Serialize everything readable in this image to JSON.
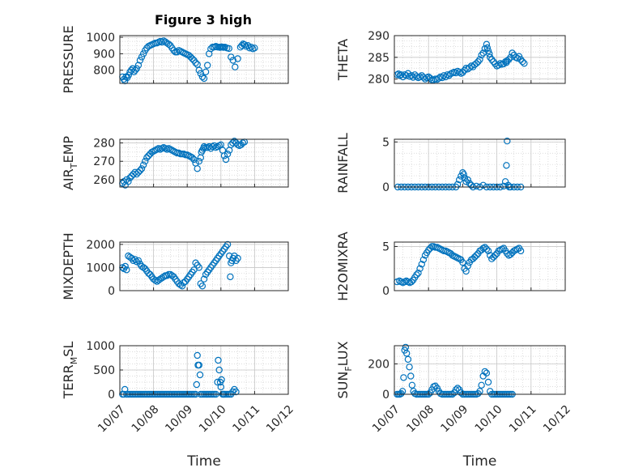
{
  "figure": {
    "title": "Figure 3 high",
    "colors": {
      "marker": "#0072BD",
      "axis": "#262626",
      "grid": "#d0d0d0"
    }
  },
  "chart_data": [
    {
      "type": "scatter",
      "ylabel": "PRESSURE",
      "yticks": [
        800,
        900,
        1000
      ],
      "ylim": [
        720,
        1010
      ],
      "xlim": [
        "10/07",
        "10/12"
      ],
      "xticks": [
        "10/07",
        "10/08",
        "10/09",
        "10/10",
        "10/11",
        "10/12"
      ],
      "show_x_ticklabels": false,
      "x": [
        7.08,
        7.12,
        7.15,
        7.18,
        7.22,
        7.26,
        7.3,
        7.34,
        7.38,
        7.42,
        7.46,
        7.5,
        7.55,
        7.6,
        7.65,
        7.7,
        7.75,
        7.8,
        7.85,
        7.9,
        7.95,
        8.0,
        8.05,
        8.1,
        8.15,
        8.2,
        8.25,
        8.3,
        8.35,
        8.4,
        8.45,
        8.5,
        8.55,
        8.6,
        8.65,
        8.7,
        8.75,
        8.8,
        8.85,
        8.9,
        8.95,
        9.0,
        9.05,
        9.1,
        9.15,
        9.2,
        9.25,
        9.3,
        9.35,
        9.4,
        9.45,
        9.5,
        9.55,
        9.6,
        9.65,
        9.7,
        9.75,
        9.8,
        9.85,
        9.9,
        9.95,
        9.97,
        10.0,
        10.02,
        10.05,
        10.08,
        10.12,
        10.18,
        10.24,
        10.3,
        10.36,
        10.42,
        10.5,
        10.58,
        10.62,
        10.66,
        10.7,
        10.75,
        10.8,
        10.85,
        10.9,
        10.95,
        11.0
      ],
      "y": [
        760,
        745,
        735,
        760,
        755,
        770,
        790,
        800,
        810,
        790,
        800,
        810,
        830,
        860,
        880,
        900,
        920,
        935,
        945,
        950,
        955,
        960,
        965,
        965,
        970,
        975,
        970,
        978,
        972,
        965,
        958,
        950,
        935,
        920,
        910,
        910,
        920,
        915,
        910,
        905,
        900,
        895,
        890,
        880,
        870,
        860,
        845,
        835,
        800,
        780,
        760,
        750,
        790,
        830,
        900,
        930,
        940,
        940,
        945,
        940,
        940,
        938,
        940,
        942,
        940,
        938,
        940,
        935,
        932,
        880,
        860,
        820,
        870,
        940,
        950,
        960,
        955,
        945,
        950,
        935,
        940,
        930,
        935
      ],
      "ylim_note": ""
    },
    {
      "type": "scatter",
      "ylabel": "THETA",
      "yticks": [
        280,
        285,
        290
      ],
      "ylim": [
        279,
        290
      ],
      "xlim": [
        "10/07",
        "10/12"
      ],
      "xticks": [
        "10/07",
        "10/08",
        "10/09",
        "10/10",
        "10/11",
        "10/12"
      ],
      "show_x_ticklabels": false,
      "x": [
        7.08,
        7.12,
        7.16,
        7.2,
        7.25,
        7.3,
        7.35,
        7.4,
        7.45,
        7.5,
        7.55,
        7.6,
        7.65,
        7.7,
        7.75,
        7.8,
        7.85,
        7.9,
        7.95,
        8.0,
        8.05,
        8.1,
        8.15,
        8.2,
        8.25,
        8.3,
        8.35,
        8.4,
        8.45,
        8.5,
        8.55,
        8.6,
        8.65,
        8.7,
        8.75,
        8.8,
        8.85,
        8.9,
        8.95,
        9.0,
        9.05,
        9.1,
        9.15,
        9.2,
        9.25,
        9.3,
        9.35,
        9.4,
        9.45,
        9.5,
        9.55,
        9.6,
        9.65,
        9.7,
        9.72,
        9.75,
        9.78,
        9.8,
        9.85,
        9.9,
        9.95,
        10.0,
        10.05,
        10.1,
        10.15,
        10.2,
        10.25,
        10.28,
        10.3,
        10.35,
        10.4,
        10.45,
        10.5,
        10.55,
        10.6,
        10.65,
        10.7,
        10.75,
        10.8
      ],
      "y": [
        281,
        281.2,
        280.8,
        281,
        280.5,
        281,
        280.8,
        281.3,
        280.6,
        280.8,
        280.4,
        281,
        280.6,
        280.3,
        280.5,
        280.8,
        280.4,
        280,
        280.3,
        280.5,
        280.2,
        279.8,
        279.8,
        280,
        279.9,
        280.2,
        280.5,
        280.3,
        280.8,
        280.5,
        281,
        280.8,
        281.2,
        281.4,
        281.6,
        281.4,
        281.8,
        281.6,
        281.3,
        281.5,
        282,
        282.5,
        282.3,
        282.6,
        283,
        282.8,
        283.3,
        283.6,
        284,
        284.5,
        285.5,
        286,
        287,
        288,
        287.2,
        286.5,
        285.8,
        285,
        284.5,
        284,
        283.5,
        283,
        283.2,
        283.6,
        283.4,
        283.5,
        284,
        283.8,
        284.2,
        284.5,
        285,
        286,
        285.5,
        285,
        284.8,
        285.2,
        284.5,
        284,
        283.6
      ],
      "ylim_note": ""
    },
    {
      "type": "scatter",
      "ylabel": "AIR_TEMP",
      "ylabel_main": "AIR",
      "ylabel_sub": "T",
      "ylabel_tail": "EMP",
      "yticks": [
        260,
        270,
        280
      ],
      "ylim": [
        256,
        282
      ],
      "xlim": [
        "10/07",
        "10/12"
      ],
      "xticks": [
        "10/07",
        "10/08",
        "10/09",
        "10/10",
        "10/11",
        "10/12"
      ],
      "show_x_ticklabels": false,
      "x": [
        7.08,
        7.12,
        7.16,
        7.2,
        7.25,
        7.3,
        7.35,
        7.4,
        7.45,
        7.5,
        7.55,
        7.6,
        7.65,
        7.7,
        7.75,
        7.8,
        7.85,
        7.9,
        7.95,
        8.0,
        8.05,
        8.1,
        8.15,
        8.2,
        8.25,
        8.3,
        8.35,
        8.4,
        8.45,
        8.5,
        8.55,
        8.6,
        8.65,
        8.7,
        8.75,
        8.8,
        8.85,
        8.9,
        8.95,
        9.0,
        9.05,
        9.1,
        9.15,
        9.2,
        9.25,
        9.3,
        9.35,
        9.4,
        9.42,
        9.45,
        9.48,
        9.5,
        9.55,
        9.6,
        9.65,
        9.7,
        9.75,
        9.8,
        9.85,
        9.9,
        9.95,
        10.0,
        10.05,
        10.1,
        10.15,
        10.2,
        10.25,
        10.3,
        10.35,
        10.4,
        10.45,
        10.5,
        10.55,
        10.6,
        10.65,
        10.7
      ],
      "y": [
        258,
        259,
        257,
        260,
        259,
        261,
        262,
        263,
        264,
        263,
        264,
        265,
        266,
        268,
        270,
        272,
        273,
        274,
        275,
        275.5,
        276,
        276.5,
        277,
        276.5,
        277,
        277.5,
        277,
        276.5,
        277,
        276.5,
        276,
        275.5,
        275,
        274.5,
        274.5,
        274,
        274,
        274,
        273.5,
        273.5,
        273,
        272.5,
        272,
        271,
        269,
        266,
        270,
        272,
        275,
        276,
        277,
        278,
        277.5,
        277.5,
        278,
        277,
        278,
        278.5,
        277.5,
        278,
        278.5,
        279,
        276,
        273,
        271,
        274,
        276,
        279,
        280,
        281,
        280,
        279,
        278.5,
        279,
        280,
        280.5
      ],
      "ylim_note": ""
    },
    {
      "type": "scatter",
      "ylabel": "RAINFALL",
      "yticks": [
        0,
        5
      ],
      "ylim": [
        0,
        5.3
      ],
      "xlim": [
        "10/07",
        "10/12"
      ],
      "xticks": [
        "10/07",
        "10/08",
        "10/09",
        "10/10",
        "10/11",
        "10/12"
      ],
      "show_x_ticklabels": false,
      "x": [
        7.1,
        7.2,
        7.3,
        7.4,
        7.5,
        7.6,
        7.7,
        7.8,
        7.9,
        8.0,
        8.1,
        8.2,
        8.3,
        8.4,
        8.5,
        8.6,
        8.7,
        8.8,
        8.85,
        8.9,
        8.95,
        9.0,
        9.03,
        9.06,
        9.1,
        9.15,
        9.2,
        9.25,
        9.3,
        9.4,
        9.5,
        9.6,
        9.7,
        9.8,
        9.9,
        10.0,
        10.1,
        10.2,
        10.25,
        10.28,
        10.3,
        10.33,
        10.36,
        10.4,
        10.5,
        10.6,
        10.7
      ],
      "y": [
        0,
        0,
        0,
        0,
        0,
        0,
        0,
        0,
        0,
        0,
        0,
        0,
        0,
        0,
        0,
        0,
        0,
        0,
        0.3,
        0.8,
        1.2,
        1.6,
        1.4,
        1.0,
        0.6,
        0.8,
        0.4,
        0.2,
        0,
        0.1,
        0,
        0.2,
        0,
        0,
        0,
        0,
        0,
        0.1,
        0.6,
        2.4,
        5.1,
        0.2,
        0,
        0,
        0,
        0,
        0
      ],
      "ylim_note": ""
    },
    {
      "type": "scatter",
      "ylabel": "MIXDEPTH",
      "yticks": [
        0,
        1000,
        2000
      ],
      "ylim": [
        0,
        2100
      ],
      "xlim": [
        "10/07",
        "10/12"
      ],
      "xticks": [
        "10/07",
        "10/08",
        "10/09",
        "10/10",
        "10/11",
        "10/12"
      ],
      "show_x_ticklabels": false,
      "x": [
        7.08,
        7.12,
        7.16,
        7.2,
        7.25,
        7.3,
        7.35,
        7.4,
        7.45,
        7.5,
        7.55,
        7.6,
        7.65,
        7.7,
        7.75,
        7.8,
        7.85,
        7.9,
        7.95,
        8.0,
        8.05,
        8.1,
        8.15,
        8.2,
        8.25,
        8.3,
        8.35,
        8.4,
        8.45,
        8.5,
        8.55,
        8.6,
        8.65,
        8.7,
        8.75,
        8.8,
        8.85,
        8.9,
        8.95,
        9.0,
        9.05,
        9.1,
        9.15,
        9.2,
        9.25,
        9.3,
        9.35,
        9.4,
        9.45,
        9.5,
        9.55,
        9.6,
        9.65,
        9.7,
        9.75,
        9.8,
        9.85,
        9.9,
        9.95,
        10.0,
        10.05,
        10.1,
        10.15,
        10.2,
        10.25,
        10.28,
        10.3,
        10.33,
        10.36,
        10.4,
        10.45,
        10.5
      ],
      "y": [
        1000,
        950,
        1050,
        900,
        1500,
        1450,
        1400,
        1300,
        1350,
        1250,
        1300,
        1150,
        1050,
        1000,
        950,
        850,
        750,
        700,
        600,
        500,
        450,
        400,
        450,
        500,
        550,
        600,
        650,
        650,
        700,
        700,
        650,
        600,
        500,
        400,
        300,
        250,
        200,
        350,
        400,
        500,
        600,
        700,
        800,
        900,
        1200,
        1100,
        1000,
        300,
        200,
        500,
        700,
        800,
        900,
        1000,
        1100,
        1200,
        1300,
        1400,
        1500,
        1600,
        1700,
        1800,
        1900,
        2000,
        1500,
        600,
        1200,
        1300,
        1400,
        1500,
        1300,
        1400
      ],
      "ylim_note": ""
    },
    {
      "type": "scatter",
      "ylabel": "H2OMIXRA",
      "yticks": [
        0,
        5
      ],
      "ylim": [
        0,
        5.5
      ],
      "xlim": [
        "10/07",
        "10/12"
      ],
      "xticks": [
        "10/07",
        "10/08",
        "10/09",
        "10/10",
        "10/11",
        "10/12"
      ],
      "show_x_ticklabels": false,
      "x": [
        7.08,
        7.15,
        7.2,
        7.25,
        7.3,
        7.35,
        7.4,
        7.45,
        7.5,
        7.55,
        7.6,
        7.65,
        7.7,
        7.75,
        7.8,
        7.85,
        7.9,
        7.95,
        8.0,
        8.05,
        8.1,
        8.15,
        8.2,
        8.25,
        8.3,
        8.35,
        8.4,
        8.45,
        8.5,
        8.55,
        8.6,
        8.65,
        8.7,
        8.75,
        8.8,
        8.85,
        8.9,
        8.95,
        9.0,
        9.05,
        9.1,
        9.15,
        9.2,
        9.25,
        9.3,
        9.35,
        9.4,
        9.45,
        9.5,
        9.55,
        9.6,
        9.65,
        9.7,
        9.75,
        9.8,
        9.85,
        9.9,
        9.95,
        10.0,
        10.05,
        10.1,
        10.15,
        10.2,
        10.25,
        10.3,
        10.35,
        10.4,
        10.45,
        10.5,
        10.55,
        10.6,
        10.65,
        10.7
      ],
      "y": [
        1.0,
        1.1,
        1.0,
        0.9,
        1.0,
        1.1,
        1.0,
        0.9,
        1.0,
        1.2,
        1.5,
        1.8,
        2.0,
        2.5,
        3.0,
        3.5,
        4.0,
        4.3,
        4.6,
        4.8,
        5.0,
        5.0,
        4.9,
        4.9,
        4.8,
        4.7,
        4.6,
        4.5,
        4.5,
        4.4,
        4.3,
        4.2,
        4.0,
        3.9,
        3.8,
        3.7,
        3.6,
        3.5,
        3.2,
        2.5,
        2.2,
        2.8,
        3.2,
        3.5,
        3.6,
        3.8,
        4.0,
        4.2,
        4.5,
        4.6,
        4.8,
        4.9,
        4.7,
        4.5,
        4.0,
        3.6,
        3.8,
        4.0,
        4.2,
        4.5,
        4.6,
        4.7,
        4.8,
        4.5,
        4.2,
        4.0,
        4.1,
        4.3,
        4.5,
        4.6,
        4.7,
        4.8,
        4.5
      ],
      "ylim_note": ""
    },
    {
      "type": "scatter",
      "ylabel": "TERR_MSL",
      "ylabel_main": "TERR",
      "ylabel_sub": "M",
      "ylabel_tail": "SL",
      "yticks": [
        0,
        500,
        1000
      ],
      "ylim": [
        0,
        1000
      ],
      "xlim": [
        "10/07",
        "10/12"
      ],
      "xticks": [
        "10/07",
        "10/08",
        "10/09",
        "10/10",
        "10/11",
        "10/12"
      ],
      "show_x_ticklabels": true,
      "x": [
        7.08,
        7.12,
        7.15,
        7.2,
        7.25,
        7.3,
        7.35,
        7.4,
        7.45,
        7.5,
        7.55,
        7.6,
        7.65,
        7.7,
        7.75,
        7.8,
        7.85,
        7.9,
        7.95,
        8.0,
        8.05,
        8.1,
        8.15,
        8.2,
        8.25,
        8.3,
        8.35,
        8.4,
        8.45,
        8.5,
        8.55,
        8.6,
        8.65,
        8.7,
        8.75,
        8.8,
        8.85,
        8.9,
        8.95,
        9.0,
        9.05,
        9.1,
        9.15,
        9.2,
        9.25,
        9.28,
        9.3,
        9.32,
        9.35,
        9.38,
        9.4,
        9.45,
        9.5,
        9.55,
        9.6,
        9.65,
        9.7,
        9.75,
        9.8,
        9.85,
        9.9,
        9.92,
        9.95,
        9.98,
        10.0,
        10.02,
        10.05,
        10.08,
        10.1,
        10.15,
        10.2,
        10.25,
        10.3,
        10.35,
        10.4,
        10.45
      ],
      "y": [
        0,
        0,
        100,
        0,
        0,
        0,
        0,
        0,
        0,
        0,
        0,
        0,
        0,
        0,
        0,
        0,
        0,
        0,
        0,
        0,
        0,
        0,
        0,
        0,
        0,
        0,
        0,
        0,
        0,
        0,
        0,
        0,
        0,
        0,
        0,
        0,
        0,
        0,
        0,
        0,
        0,
        0,
        0,
        0,
        0,
        200,
        800,
        600,
        600,
        400,
        0,
        0,
        0,
        0,
        0,
        0,
        0,
        0,
        0,
        0,
        250,
        700,
        500,
        250,
        150,
        300,
        0,
        0,
        0,
        0,
        0,
        0,
        0,
        50,
        100,
        50
      ],
      "ylim_note": ""
    },
    {
      "type": "scatter",
      "ylabel": "SUN_FLUX",
      "ylabel_main": "SUN",
      "ylabel_sub": "F",
      "ylabel_tail": "LUX",
      "yticks": [
        0,
        200
      ],
      "ylim": [
        0,
        320
      ],
      "xlim": [
        "10/07",
        "10/12"
      ],
      "xticks": [
        "10/07",
        "10/08",
        "10/09",
        "10/10",
        "10/11",
        "10/12"
      ],
      "show_x_ticklabels": true,
      "x": [
        7.08,
        7.12,
        7.16,
        7.2,
        7.24,
        7.27,
        7.3,
        7.33,
        7.36,
        7.4,
        7.44,
        7.48,
        7.52,
        7.56,
        7.6,
        7.65,
        7.7,
        7.75,
        7.8,
        7.85,
        7.9,
        7.95,
        8.0,
        8.05,
        8.1,
        8.15,
        8.2,
        8.25,
        8.3,
        8.35,
        8.4,
        8.45,
        8.5,
        8.55,
        8.6,
        8.65,
        8.7,
        8.75,
        8.8,
        8.85,
        8.9,
        8.95,
        9.0,
        9.05,
        9.1,
        9.15,
        9.2,
        9.25,
        9.3,
        9.35,
        9.4,
        9.45,
        9.5,
        9.55,
        9.6,
        9.65,
        9.7,
        9.75,
        9.8,
        9.85,
        9.9,
        9.95,
        10.0,
        10.05,
        10.1,
        10.15,
        10.2,
        10.25,
        10.3,
        10.35,
        10.4,
        10.45
      ],
      "y": [
        0,
        0,
        0,
        5,
        20,
        110,
        290,
        310,
        270,
        230,
        180,
        120,
        60,
        20,
        5,
        0,
        0,
        0,
        0,
        0,
        0,
        0,
        0,
        10,
        30,
        50,
        55,
        40,
        20,
        5,
        0,
        0,
        0,
        0,
        0,
        0,
        0,
        10,
        30,
        40,
        30,
        10,
        0,
        0,
        0,
        0,
        0,
        0,
        0,
        0,
        0,
        5,
        20,
        60,
        120,
        150,
        140,
        80,
        20,
        0,
        0,
        0,
        0,
        0,
        0,
        0,
        0,
        0,
        0,
        0,
        0,
        0
      ],
      "ylim_note": ""
    }
  ],
  "axes_text": {
    "xlabel": "Time"
  }
}
